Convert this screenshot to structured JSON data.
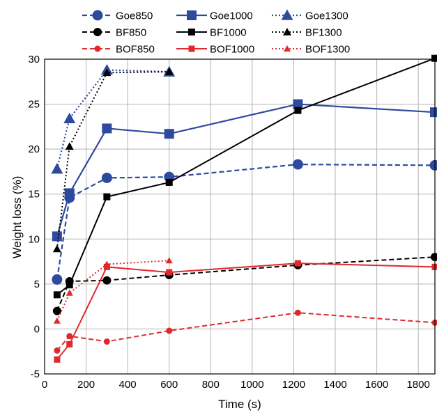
{
  "chart_data": {
    "type": "line",
    "title": "",
    "xlabel": "Time (s)",
    "ylabel": "Weight loss (%)",
    "xlim": [
      0,
      1880
    ],
    "ylim": [
      -5,
      30
    ],
    "xticks": [
      0,
      200,
      400,
      600,
      800,
      1000,
      1200,
      1400,
      1600,
      1800
    ],
    "yticks": [
      -5,
      0,
      5,
      10,
      15,
      20,
      25,
      30
    ],
    "grid": true,
    "legend_position": "top",
    "series": [
      {
        "name": "Goe850",
        "color": "#2E4A9E",
        "dash": "dashed",
        "marker": "circle",
        "x": [
          60,
          120,
          300,
          600,
          1220,
          1880
        ],
        "y": [
          5.5,
          14.6,
          16.8,
          16.9,
          18.3,
          18.2
        ]
      },
      {
        "name": "Goe1000",
        "color": "#2E4A9E",
        "dash": "solid",
        "marker": "square",
        "x": [
          60,
          120,
          300,
          600,
          1220,
          1880
        ],
        "y": [
          10.3,
          15.1,
          22.3,
          21.7,
          25.0,
          24.1
        ]
      },
      {
        "name": "Goe1300",
        "color": "#2E4A9E",
        "dash": "dotted",
        "marker": "triangle",
        "x": [
          60,
          120,
          300,
          600
        ],
        "y": [
          17.8,
          23.4,
          28.8,
          28.6
        ]
      },
      {
        "name": "BF850",
        "color": "#000000",
        "dash": "dashed",
        "marker": "circle",
        "x": [
          60,
          120,
          300,
          600,
          1220,
          1880
        ],
        "y": [
          2.0,
          5.3,
          5.4,
          6.0,
          7.1,
          8.0
        ]
      },
      {
        "name": "BF1000",
        "color": "#000000",
        "dash": "solid",
        "marker": "square",
        "x": [
          60,
          120,
          300,
          600,
          1220,
          1880
        ],
        "y": [
          3.8,
          4.9,
          14.7,
          16.3,
          24.3,
          30.1
        ]
      },
      {
        "name": "BF1300",
        "color": "#000000",
        "dash": "dotted",
        "marker": "triangle",
        "x": [
          60,
          120,
          300,
          600
        ],
        "y": [
          8.9,
          20.3,
          28.5,
          28.6
        ]
      },
      {
        "name": "BOF850",
        "color": "#E0282E",
        "dash": "dashed",
        "marker": "circle",
        "x": [
          60,
          120,
          300,
          600,
          1220,
          1880
        ],
        "y": [
          -2.4,
          -0.8,
          -1.4,
          -0.2,
          1.8,
          0.7
        ]
      },
      {
        "name": "BOF1000",
        "color": "#E0282E",
        "dash": "solid",
        "marker": "square",
        "x": [
          60,
          120,
          300,
          600,
          1220,
          1880
        ],
        "y": [
          -3.4,
          -1.7,
          6.9,
          6.3,
          7.3,
          6.9
        ]
      },
      {
        "name": "BOF1300",
        "color": "#E0282E",
        "dash": "dotted",
        "marker": "triangle",
        "x": [
          60,
          120,
          300,
          600
        ],
        "y": [
          0.9,
          4.0,
          7.2,
          7.6
        ]
      }
    ]
  }
}
